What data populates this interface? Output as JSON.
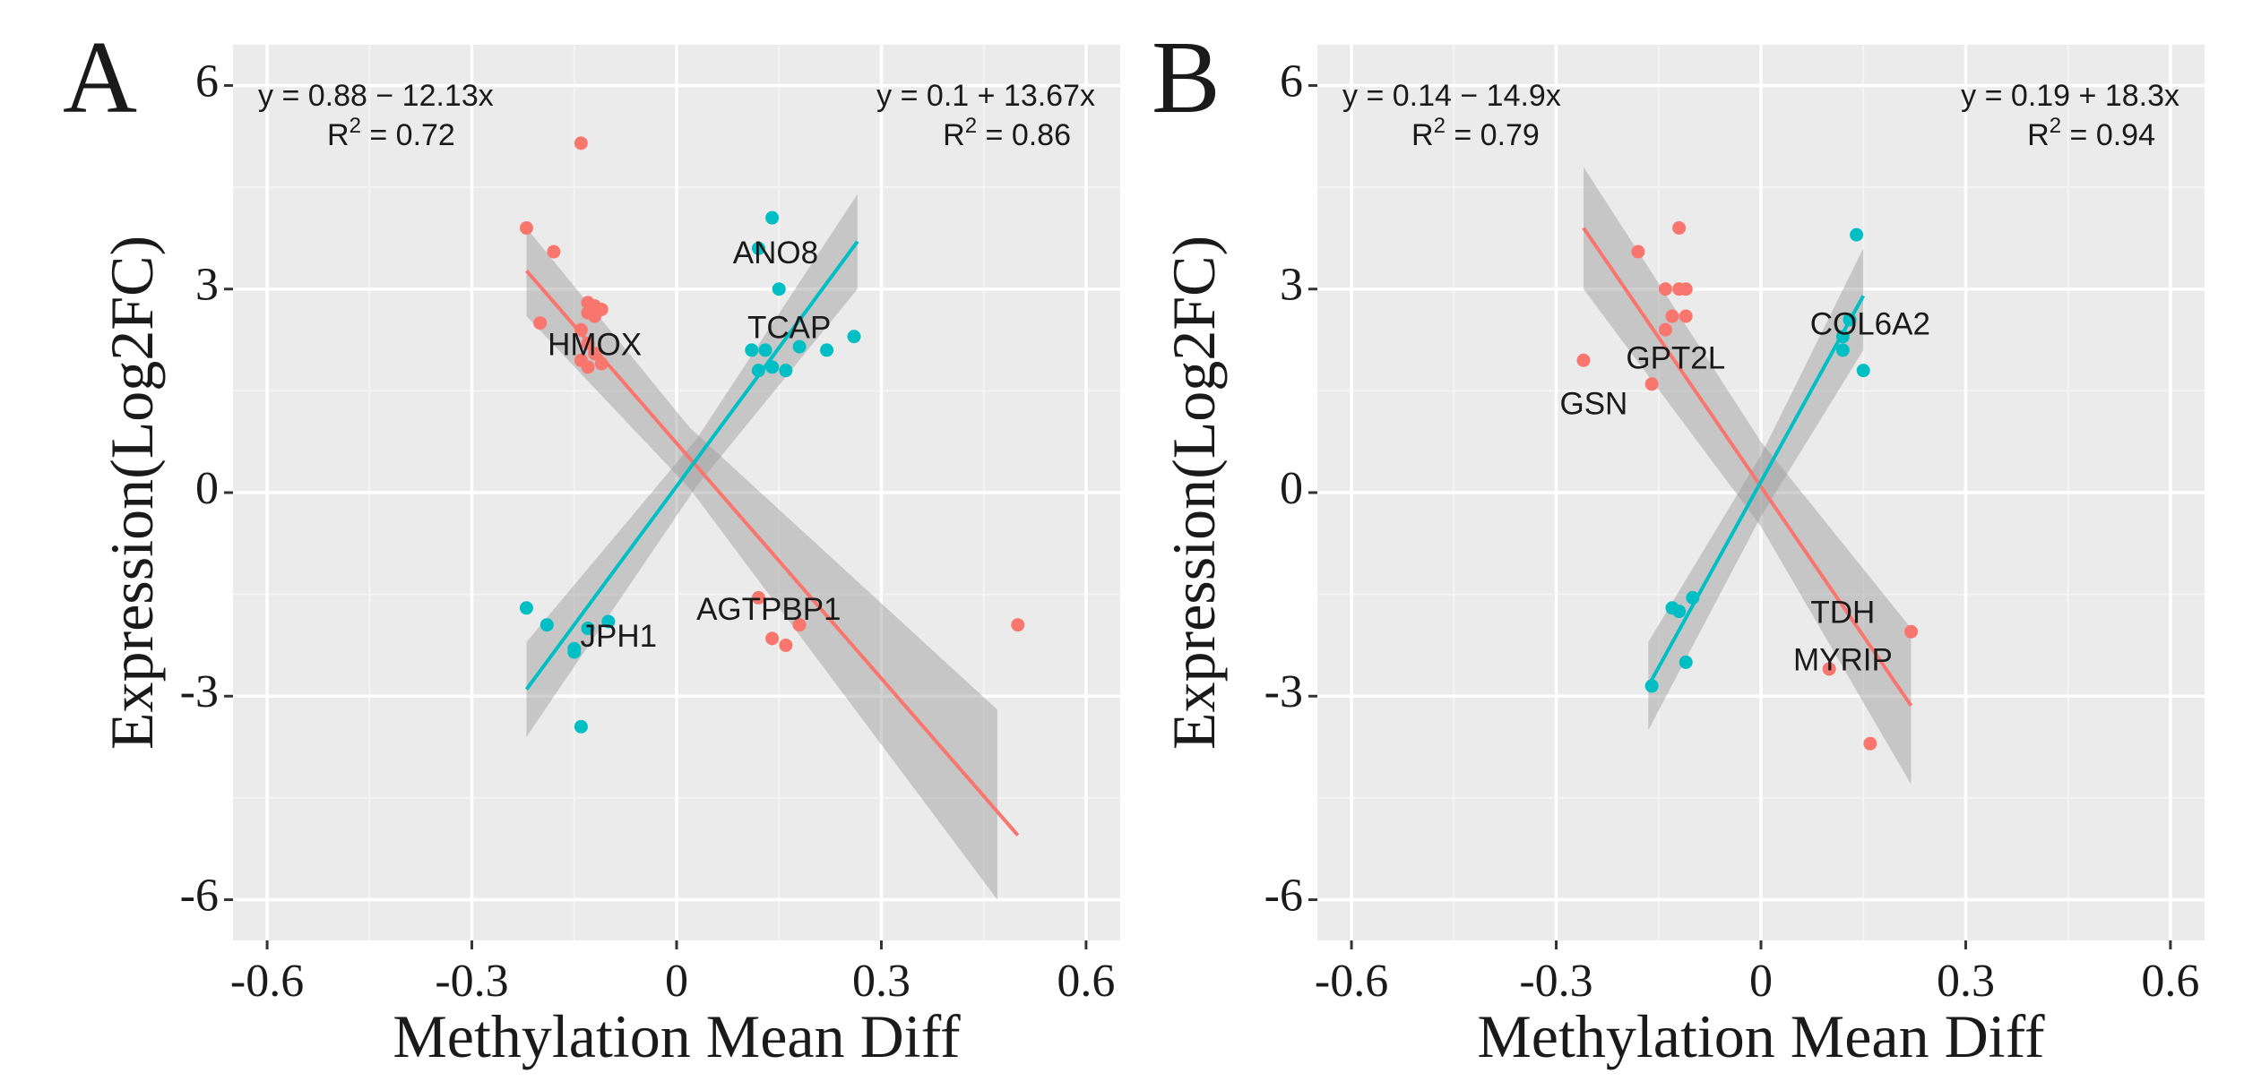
{
  "colors": {
    "panel_bg": "#ebebeb",
    "grid_major": "#ffffff",
    "grid_minor": "#f4f4f4",
    "neg_series": "#f8766d",
    "pos_series": "#00bfc4",
    "ribbon": "#999999",
    "text": "#1a1a1a"
  },
  "chart_data": [
    {
      "panel_label": "A",
      "type": "scatter",
      "xlabel": "Methylation Mean Diff",
      "ylabel": "Expression(Log2FC)",
      "xlim": [
        -0.65,
        0.65
      ],
      "ylim": [
        -6.6,
        6.6
      ],
      "xticks": [
        -0.6,
        -0.3,
        0,
        0.3,
        0.6
      ],
      "xtick_labels": [
        "-0.6",
        "-0.3",
        "0",
        "0.3",
        "0.6"
      ],
      "yticks": [
        -6,
        -3,
        0,
        3,
        6
      ],
      "ytick_labels": [
        "-6",
        "-3",
        "0",
        "3",
        "6"
      ],
      "series": [
        {
          "name": "negative",
          "color": "#f8766d",
          "points": [
            [
              -0.14,
              5.15
            ],
            [
              -0.22,
              3.9
            ],
            [
              -0.18,
              3.55
            ],
            [
              -0.2,
              2.5
            ],
            [
              -0.13,
              2.8
            ],
            [
              -0.12,
              2.75
            ],
            [
              -0.11,
              2.7
            ],
            [
              -0.13,
              2.65
            ],
            [
              -0.12,
              2.6
            ],
            [
              -0.14,
              2.4
            ],
            [
              -0.13,
              2.2
            ],
            [
              -0.12,
              2.05
            ],
            [
              -0.14,
              1.95
            ],
            [
              -0.13,
              1.85
            ],
            [
              -0.11,
              1.9
            ],
            [
              0.12,
              -1.55
            ],
            [
              0.14,
              -2.15
            ],
            [
              0.16,
              -2.25
            ],
            [
              0.18,
              -1.95
            ],
            [
              0.5,
              -1.95
            ]
          ],
          "fit": {
            "x": [
              -0.22,
              0.5
            ],
            "y": [
              3.27,
              -5.05
            ]
          },
          "ribbon": {
            "x": [
              -0.22,
              0.02,
              0.47
            ],
            "lower": [
              2.6,
              0.05,
              -6.0
            ],
            "upper": [
              3.9,
              0.95,
              -3.2
            ]
          },
          "equation": "y = 0.88 − 12.13x",
          "r2_prefix": "R",
          "r2_sup": "2",
          "r2_value": " = 0.72"
        },
        {
          "name": "positive",
          "color": "#00bfc4",
          "points": [
            [
              0.14,
              4.05
            ],
            [
              0.15,
              3.0
            ],
            [
              0.12,
              3.6
            ],
            [
              0.26,
              2.3
            ],
            [
              0.11,
              2.1
            ],
            [
              0.13,
              2.1
            ],
            [
              0.16,
              1.8
            ],
            [
              0.14,
              1.85
            ],
            [
              0.18,
              2.15
            ],
            [
              0.22,
              2.1
            ],
            [
              0.12,
              1.8
            ],
            [
              -0.22,
              -1.7
            ],
            [
              -0.19,
              -1.95
            ],
            [
              -0.15,
              -2.35
            ],
            [
              -0.14,
              -3.45
            ],
            [
              -0.13,
              -2.0
            ],
            [
              -0.1,
              -1.9
            ],
            [
              -0.15,
              -2.3
            ]
          ],
          "fit": {
            "x": [
              -0.22,
              0.265
            ],
            "y": [
              -2.9,
              3.7
            ]
          },
          "ribbon": {
            "x": [
              -0.22,
              0.03,
              0.265
            ],
            "lower": [
              -3.6,
              0.1,
              3.0
            ],
            "upper": [
              -2.2,
              0.8,
              4.4
            ]
          },
          "equation": "y = 0.1 + 13.67x",
          "r2_prefix": "R",
          "r2_sup": "2",
          "r2_value": " = 0.86"
        }
      ],
      "annotations": [
        {
          "text": "ANO8",
          "x": 0.145,
          "y": 3.5
        },
        {
          "text": "TCAP",
          "x": 0.165,
          "y": 2.4
        },
        {
          "text": "HMOX",
          "x": -0.12,
          "y": 2.15
        },
        {
          "text": "AGTPBP1",
          "x": 0.135,
          "y": -1.75
        },
        {
          "text": "JPH1",
          "x": -0.085,
          "y": -2.15
        }
      ]
    },
    {
      "panel_label": "B",
      "type": "scatter",
      "xlabel": "Methylation Mean Diff",
      "ylabel": "Expression(Log2FC)",
      "xlim": [
        -0.65,
        0.65
      ],
      "ylim": [
        -6.6,
        6.6
      ],
      "xticks": [
        -0.6,
        -0.3,
        0,
        0.3,
        0.6
      ],
      "xtick_labels": [
        "-0.6",
        "-0.3",
        "0",
        "0.3",
        "0.6"
      ],
      "yticks": [
        -6,
        -3,
        0,
        3,
        6
      ],
      "ytick_labels": [
        "-6",
        "-3",
        "0",
        "3",
        "6"
      ],
      "series": [
        {
          "name": "negative",
          "color": "#f8766d",
          "points": [
            [
              -0.12,
              3.9
            ],
            [
              -0.18,
              3.55
            ],
            [
              -0.14,
              3.0
            ],
            [
              -0.12,
              3.0
            ],
            [
              -0.11,
              3.0
            ],
            [
              -0.13,
              2.6
            ],
            [
              -0.11,
              2.6
            ],
            [
              -0.14,
              2.4
            ],
            [
              -0.26,
              1.95
            ],
            [
              -0.16,
              1.6
            ],
            [
              0.22,
              -2.05
            ],
            [
              0.1,
              -2.6
            ],
            [
              0.16,
              -3.7
            ]
          ],
          "fit": {
            "x": [
              -0.26,
              0.22
            ],
            "y": [
              3.9,
              -3.14
            ]
          },
          "ribbon": {
            "x": [
              -0.26,
              0.0,
              0.22
            ],
            "lower": [
              3.0,
              -0.5,
              -4.3
            ],
            "upper": [
              4.8,
              0.75,
              -2.0
            ]
          },
          "equation": "y = 0.14 − 14.9x",
          "r2_prefix": "R",
          "r2_sup": "2",
          "r2_value": " = 0.79"
        },
        {
          "name": "positive",
          "color": "#00bfc4",
          "points": [
            [
              0.14,
              3.8
            ],
            [
              0.15,
              1.8
            ],
            [
              0.13,
              2.55
            ],
            [
              0.12,
              2.3
            ],
            [
              0.12,
              2.1
            ],
            [
              -0.13,
              -1.7
            ],
            [
              -0.12,
              -1.75
            ],
            [
              -0.1,
              -1.55
            ],
            [
              -0.11,
              -2.5
            ],
            [
              -0.16,
              -2.85
            ]
          ],
          "fit": {
            "x": [
              -0.165,
              0.15
            ],
            "y": [
              -2.85,
              2.9
            ]
          },
          "ribbon": {
            "x": [
              -0.165,
              0.0,
              0.15
            ],
            "lower": [
              -3.5,
              -0.35,
              2.1
            ],
            "upper": [
              -2.2,
              0.55,
              3.6
            ]
          },
          "equation": "y = 0.19 + 18.3x",
          "r2_prefix": "R",
          "r2_sup": "2",
          "r2_value": " = 0.94"
        }
      ],
      "annotations": [
        {
          "text": "COL6A2",
          "x": 0.16,
          "y": 2.45
        },
        {
          "text": "GPT2L",
          "x": -0.125,
          "y": 1.95
        },
        {
          "text": "GSN",
          "x": -0.245,
          "y": 1.28
        },
        {
          "text": "TDH",
          "x": 0.12,
          "y": -1.8
        },
        {
          "text": "MYRIP",
          "x": 0.12,
          "y": -2.5
        }
      ]
    }
  ]
}
